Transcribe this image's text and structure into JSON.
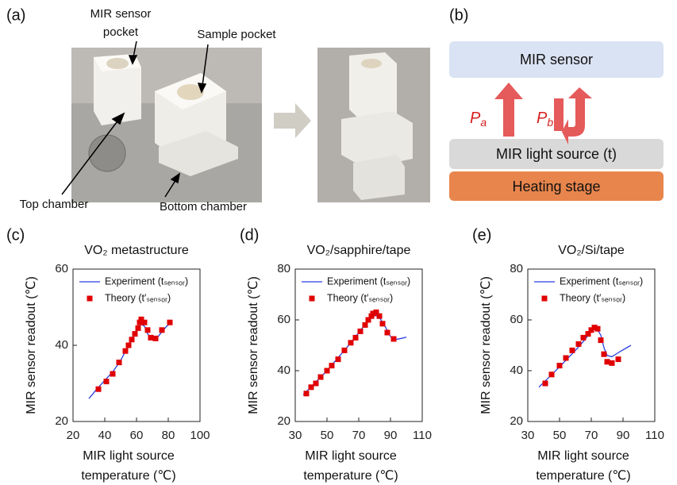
{
  "panels": [
    "(a)",
    "(b)",
    "(c)",
    "(d)",
    "(e)"
  ],
  "photo": {
    "annotations": [
      "MIR sensor",
      "pocket",
      "Sample pocket",
      "Top chamber",
      "Bottom chamber"
    ]
  },
  "diagram": {
    "sensor": "MIR sensor",
    "source": "MIR light source (t)",
    "stage": "Heating stage",
    "power_a": {
      "symbol": "P",
      "subscript": "a"
    },
    "power_b": {
      "symbol": "P",
      "subscript": "b"
    }
  },
  "chart_data": [
    {
      "type": "line",
      "title": "VO₂ metastructure",
      "ylabel": "MIR sensor readout (℃)",
      "xlabel": [
        "MIR light source",
        "temperature (℃)"
      ],
      "xlim": [
        20,
        100
      ],
      "xticks": [
        20,
        40,
        60,
        80,
        100
      ],
      "ylim": [
        20,
        60
      ],
      "yticks": [
        20,
        40,
        60
      ],
      "series": [
        {
          "name": "Experiment (tₛₑₙₛₒᵣ)",
          "type": "line",
          "color": "#2a3fe0",
          "x": [
            30,
            35,
            40,
            45,
            50,
            55,
            58,
            61,
            63,
            65,
            67,
            70,
            73,
            76,
            79,
            82
          ],
          "values": [
            26,
            28.5,
            30.8,
            33,
            36,
            40,
            42.5,
            44.5,
            45.5,
            45,
            43,
            41.6,
            42,
            43.5,
            45,
            46
          ]
        },
        {
          "name": "Theory (t′ₛₑₙₛₒᵣ)",
          "type": "scatter",
          "color": "#e00000",
          "x": [
            36,
            41,
            45,
            49,
            53,
            55,
            57,
            59,
            61,
            62,
            63,
            65,
            67,
            69,
            72,
            76,
            81
          ],
          "values": [
            28.5,
            30.5,
            32.5,
            35.5,
            38.5,
            40,
            41.5,
            43,
            44.5,
            46,
            46.8,
            46,
            44,
            42,
            41.8,
            44,
            46
          ]
        }
      ]
    },
    {
      "type": "line",
      "title": "VO₂/sapphire/tape",
      "ylabel": "MIR sensor readout (℃)",
      "xlabel": [
        "MIR light source",
        "temperature (℃)"
      ],
      "xlim": [
        30,
        110
      ],
      "xticks": [
        30,
        50,
        70,
        90,
        110
      ],
      "ylim": [
        20,
        80
      ],
      "yticks": [
        20,
        40,
        60,
        80
      ],
      "series": [
        {
          "name": "Experiment (tₛₑₙₛₒᵣ)",
          "type": "line",
          "color": "#2a3fe0",
          "x": [
            35,
            50,
            65,
            75,
            80,
            83,
            87,
            90,
            92,
            96,
            100
          ],
          "values": [
            30.5,
            40,
            51,
            59,
            62,
            61,
            57,
            53.5,
            52.2,
            52.6,
            53.2
          ]
        },
        {
          "name": "Theory (t′ₛₑₙₛₒᵣ)",
          "type": "scatter",
          "color": "#e00000",
          "x": [
            37,
            40,
            43,
            46,
            50,
            53,
            57,
            61,
            65,
            68,
            71,
            74,
            76,
            78,
            79,
            81,
            83,
            85,
            88,
            92
          ],
          "values": [
            31,
            33.5,
            35,
            37.5,
            40,
            42,
            44.5,
            48,
            51,
            53,
            55.5,
            58,
            60,
            61.5,
            62.5,
            63,
            61.5,
            58.5,
            55,
            52.5
          ]
        }
      ]
    },
    {
      "type": "line",
      "title": "VO₂/Si/tape",
      "ylabel": "MIR sensor readout (℃)",
      "xlabel": [
        "MIR light source",
        "temperature (℃)"
      ],
      "xlim": [
        30,
        110
      ],
      "xticks": [
        30,
        50,
        70,
        90,
        110
      ],
      "ylim": [
        20,
        80
      ],
      "yticks": [
        20,
        40,
        60,
        80
      ],
      "series": [
        {
          "name": "Experiment (tₛₑₙₛₒᵣ)",
          "type": "line",
          "color": "#2a3fe0",
          "x": [
            37,
            50,
            60,
            65,
            70,
            73,
            76,
            78,
            80,
            83,
            88,
            95
          ],
          "values": [
            33.5,
            41.5,
            48,
            51.5,
            55.5,
            57,
            54,
            49,
            46,
            45.5,
            47.5,
            50
          ]
        },
        {
          "name": "Theory (t′ₛₑₙₛₒᵣ)",
          "type": "scatter",
          "color": "#e00000",
          "x": [
            41,
            45,
            50,
            54,
            58,
            62,
            65,
            68,
            70,
            72,
            74,
            76,
            78,
            80,
            83,
            87
          ],
          "values": [
            35,
            38.5,
            42,
            45,
            48,
            50.5,
            53,
            54.5,
            56,
            57,
            56.5,
            52,
            46.5,
            43.5,
            43,
            44.5
          ]
        }
      ]
    }
  ]
}
